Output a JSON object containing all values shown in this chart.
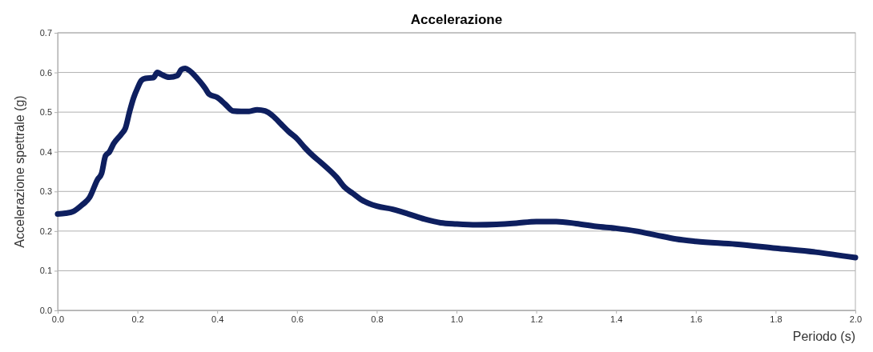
{
  "chart_data": {
    "type": "line",
    "title": "Accelerazione",
    "xlabel": "Periodo (s)",
    "ylabel": "Accelerazione spettrale (g)",
    "xlim": [
      0,
      2
    ],
    "xticks": [
      {
        "value": 0,
        "label": "0.0"
      },
      {
        "value": 0.2,
        "label": "0.2"
      },
      {
        "value": 0.4,
        "label": "0.4"
      },
      {
        "value": 0.6,
        "label": "0.6"
      },
      {
        "value": 0.8,
        "label": "0.8"
      },
      {
        "value": 1,
        "label": "1.0"
      },
      {
        "value": 1.2,
        "label": "1.2"
      },
      {
        "value": 1.4,
        "label": "1.4"
      },
      {
        "value": 1.6,
        "label": "1.6"
      },
      {
        "value": 1.8,
        "label": "1.8"
      },
      {
        "value": 2,
        "label": "2.0"
      }
    ],
    "ylim": [
      0,
      0.7
    ],
    "yticks": [
      {
        "value": 0,
        "label": "0.0"
      },
      0.1,
      0.2,
      0.3,
      0.4,
      0.5,
      0.6,
      0.7
    ],
    "grid": "y",
    "marker": "none",
    "line_style": "solid",
    "x": [
      0,
      0.02,
      0.04,
      0.06,
      0.08,
      0.1,
      0.11,
      0.12,
      0.13,
      0.14,
      0.16,
      0.17,
      0.18,
      0.19,
      0.2,
      0.21,
      0.22,
      0.24,
      0.25,
      0.26,
      0.28,
      0.3,
      0.31,
      0.32,
      0.33,
      0.35,
      0.37,
      0.38,
      0.4,
      0.42,
      0.44,
      0.46,
      0.48,
      0.5,
      0.52,
      0.54,
      0.56,
      0.58,
      0.6,
      0.62,
      0.64,
      0.66,
      0.68,
      0.7,
      0.72,
      0.74,
      0.76,
      0.78,
      0.8,
      0.84,
      0.88,
      0.92,
      0.96,
      1,
      1.05,
      1.1,
      1.15,
      1.2,
      1.25,
      1.3,
      1.35,
      1.4,
      1.45,
      1.5,
      1.55,
      1.6,
      1.7,
      1.8,
      1.9,
      2
    ],
    "series": [
      {
        "color": "#0e1f5f",
        "values": [
          0.243,
          0.245,
          0.25,
          0.265,
          0.285,
          0.33,
          0.345,
          0.39,
          0.4,
          0.42,
          0.445,
          0.46,
          0.5,
          0.535,
          0.56,
          0.58,
          0.585,
          0.587,
          0.6,
          0.595,
          0.588,
          0.592,
          0.607,
          0.61,
          0.605,
          0.585,
          0.56,
          0.545,
          0.537,
          0.52,
          0.503,
          0.502,
          0.502,
          0.506,
          0.503,
          0.49,
          0.47,
          0.45,
          0.433,
          0.41,
          0.39,
          0.373,
          0.355,
          0.335,
          0.31,
          0.295,
          0.28,
          0.27,
          0.263,
          0.255,
          0.243,
          0.23,
          0.221,
          0.218,
          0.216,
          0.217,
          0.22,
          0.224,
          0.224,
          0.219,
          0.212,
          0.207,
          0.2,
          0.19,
          0.18,
          0.174,
          0.167,
          0.157,
          0.147,
          0.133
        ]
      }
    ]
  }
}
